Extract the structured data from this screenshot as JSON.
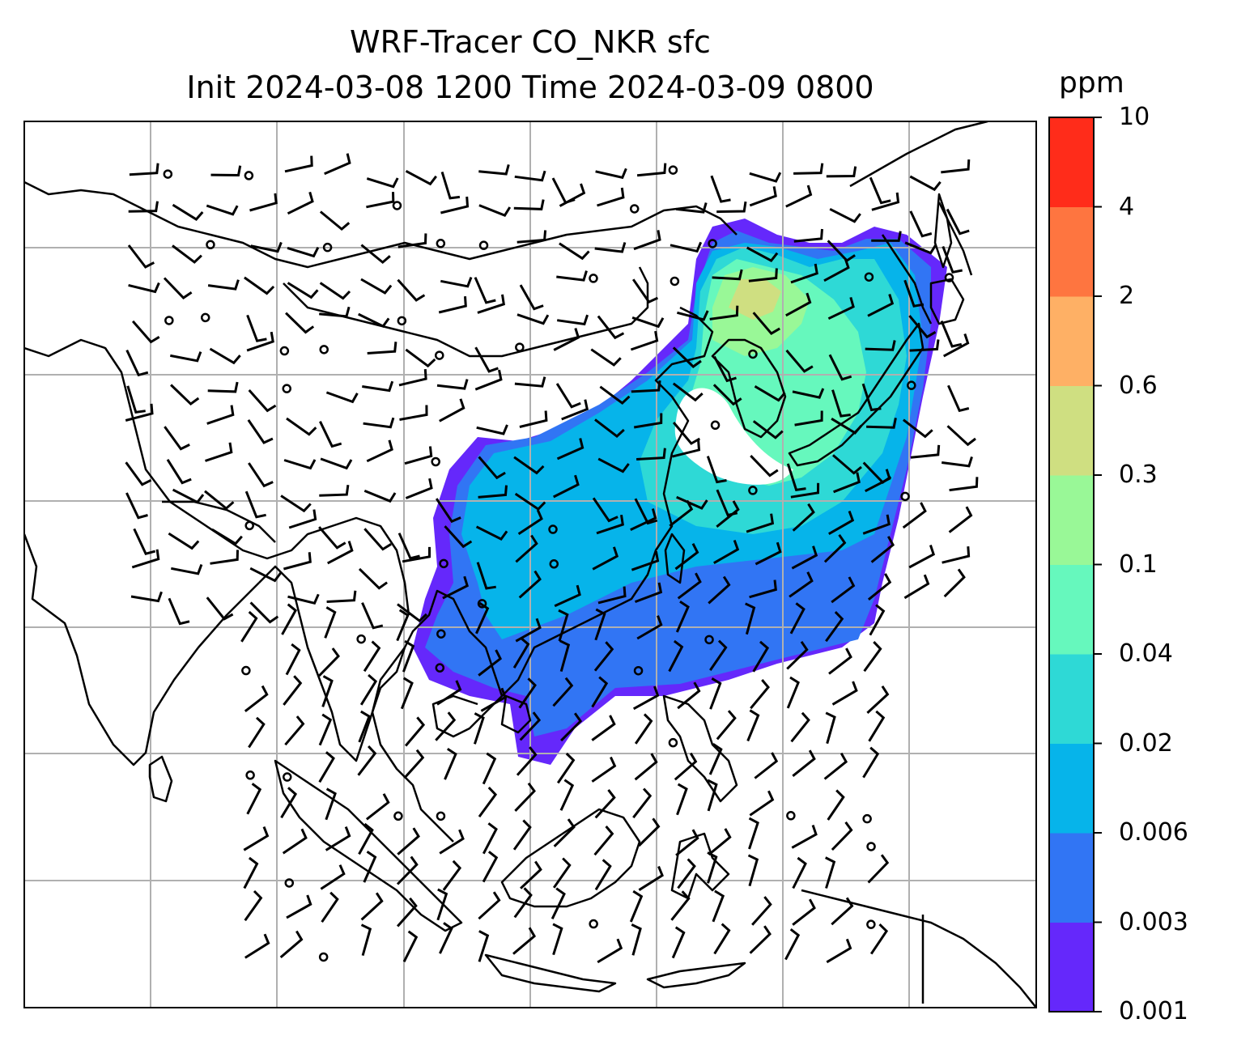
{
  "title": {
    "line1": "WRF-Tracer CO_NKR sfc",
    "line2": "Init 2024-03-08 1200 Time 2024-03-09 0800"
  },
  "colorbar": {
    "unit": "ppm",
    "ticks": [
      "0.001",
      "0.003",
      "0.006",
      "0.02",
      "0.04",
      "0.1",
      "0.3",
      "0.6",
      "2",
      "4",
      "10"
    ],
    "colors": [
      "#6528fb",
      "#3175f4",
      "#06b4ea",
      "#2ed9d6",
      "#66f8bd",
      "#99f897",
      "#cfdf81",
      "#feb065",
      "#fe7540",
      "#ff2c1a"
    ]
  },
  "map": {
    "gridlines": true,
    "line_color": "#000000",
    "grid_color": "#b0b0b0"
  }
}
